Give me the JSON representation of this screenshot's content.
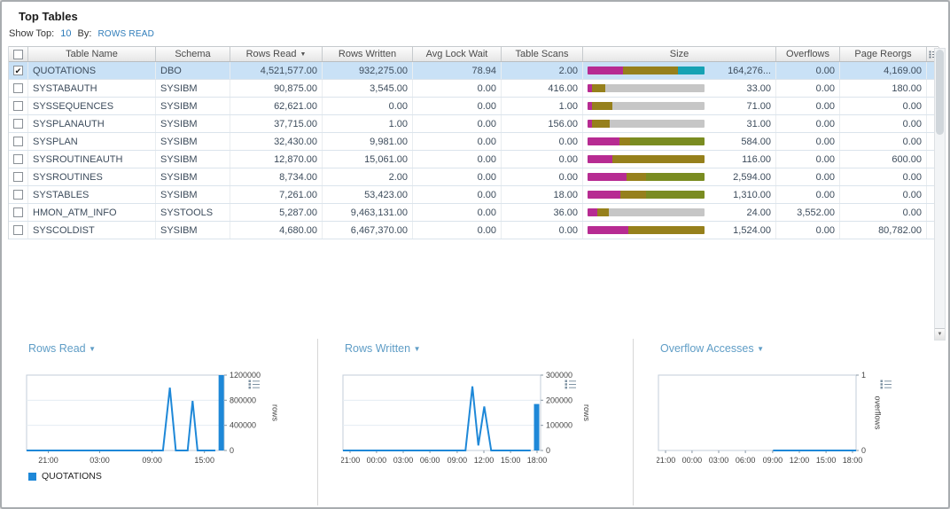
{
  "header": {
    "title": "Top Tables",
    "show_top_label": "Show Top:",
    "show_top_value": "10",
    "by_label": "By:",
    "by_value": "ROWS READ"
  },
  "icons": {
    "sort_desc": "▼",
    "dropdown": "▼",
    "check": "✔",
    "scroll_down": "▼"
  },
  "table": {
    "columns": [
      "Table Name",
      "Schema",
      "Rows Read",
      "Rows Written",
      "Avg Lock Wait",
      "Table Scans",
      "Size",
      "Overflows",
      "Page Reorgs"
    ],
    "sort_column": "Rows Read",
    "bar_colors": {
      "magenta": "#b72b92",
      "olive": "#96801c",
      "green": "#7a8c21",
      "teal": "#16a2b4",
      "gray": "#c6c6c6"
    },
    "rows": [
      {
        "checked": true,
        "selected": true,
        "name": "QUOTATIONS",
        "schema": "DBO",
        "rows_read": "4,521,577.00",
        "rows_written": "932,275.00",
        "avg_lock_wait": "78.94",
        "table_scans": "2.00",
        "size_value": "164,276...",
        "size_bar": [
          [
            "magenta",
            30
          ],
          [
            "olive",
            47
          ],
          [
            "teal",
            23
          ]
        ],
        "overflows": "0.00",
        "page_reorgs": "4,169.00"
      },
      {
        "checked": false,
        "selected": false,
        "name": "SYSTABAUTH",
        "schema": "SYSIBM",
        "rows_read": "90,875.00",
        "rows_written": "3,545.00",
        "avg_lock_wait": "0.00",
        "table_scans": "416.00",
        "size_value": "33.00",
        "size_bar": [
          [
            "magenta",
            4
          ],
          [
            "olive",
            11
          ],
          [
            "gray",
            85
          ]
        ],
        "overflows": "0.00",
        "page_reorgs": "180.00"
      },
      {
        "checked": false,
        "selected": false,
        "name": "SYSSEQUENCES",
        "schema": "SYSIBM",
        "rows_read": "62,621.00",
        "rows_written": "0.00",
        "avg_lock_wait": "0.00",
        "table_scans": "1.00",
        "size_value": "71.00",
        "size_bar": [
          [
            "magenta",
            4
          ],
          [
            "olive",
            17
          ],
          [
            "gray",
            79
          ]
        ],
        "overflows": "0.00",
        "page_reorgs": "0.00"
      },
      {
        "checked": false,
        "selected": false,
        "name": "SYSPLANAUTH",
        "schema": "SYSIBM",
        "rows_read": "37,715.00",
        "rows_written": "1.00",
        "avg_lock_wait": "0.00",
        "table_scans": "156.00",
        "size_value": "31.00",
        "size_bar": [
          [
            "magenta",
            4
          ],
          [
            "olive",
            15
          ],
          [
            "gray",
            81
          ]
        ],
        "overflows": "0.00",
        "page_reorgs": "0.00"
      },
      {
        "checked": false,
        "selected": false,
        "name": "SYSPLAN",
        "schema": "SYSIBM",
        "rows_read": "32,430.00",
        "rows_written": "9,981.00",
        "avg_lock_wait": "0.00",
        "table_scans": "0.00",
        "size_value": "584.00",
        "size_bar": [
          [
            "magenta",
            27
          ],
          [
            "olive",
            9
          ],
          [
            "green",
            64
          ]
        ],
        "overflows": "0.00",
        "page_reorgs": "0.00"
      },
      {
        "checked": false,
        "selected": false,
        "name": "SYSROUTINEAUTH",
        "schema": "SYSIBM",
        "rows_read": "12,870.00",
        "rows_written": "15,061.00",
        "avg_lock_wait": "0.00",
        "table_scans": "0.00",
        "size_value": "116.00",
        "size_bar": [
          [
            "magenta",
            21
          ],
          [
            "olive",
            79
          ]
        ],
        "overflows": "0.00",
        "page_reorgs": "600.00"
      },
      {
        "checked": false,
        "selected": false,
        "name": "SYSROUTINES",
        "schema": "SYSIBM",
        "rows_read": "8,734.00",
        "rows_written": "2.00",
        "avg_lock_wait": "0.00",
        "table_scans": "0.00",
        "size_value": "2,594.00",
        "size_bar": [
          [
            "magenta",
            33
          ],
          [
            "olive",
            17
          ],
          [
            "green",
            50
          ]
        ],
        "overflows": "0.00",
        "page_reorgs": "0.00"
      },
      {
        "checked": false,
        "selected": false,
        "name": "SYSTABLES",
        "schema": "SYSIBM",
        "rows_read": "7,261.00",
        "rows_written": "53,423.00",
        "avg_lock_wait": "0.00",
        "table_scans": "18.00",
        "size_value": "1,310.00",
        "size_bar": [
          [
            "magenta",
            28
          ],
          [
            "olive",
            22
          ],
          [
            "green",
            50
          ]
        ],
        "overflows": "0.00",
        "page_reorgs": "0.00"
      },
      {
        "checked": false,
        "selected": false,
        "name": "HMON_ATM_INFO",
        "schema": "SYSTOOLS",
        "rows_read": "5,287.00",
        "rows_written": "9,463,131.00",
        "avg_lock_wait": "0.00",
        "table_scans": "36.00",
        "size_value": "24.00",
        "size_bar": [
          [
            "magenta",
            8
          ],
          [
            "olive",
            10
          ],
          [
            "gray",
            82
          ]
        ],
        "overflows": "3,552.00",
        "page_reorgs": "0.00"
      },
      {
        "checked": false,
        "selected": false,
        "name": "SYSCOLDIST",
        "schema": "SYSIBM",
        "rows_read": "4,680.00",
        "rows_written": "6,467,370.00",
        "avg_lock_wait": "0.00",
        "table_scans": "0.00",
        "size_value": "1,524.00",
        "size_bar": [
          [
            "magenta",
            35
          ],
          [
            "olive",
            65
          ]
        ],
        "overflows": "0.00",
        "page_reorgs": "80,782.00"
      }
    ]
  },
  "legend": {
    "label": "QUOTATIONS",
    "color": "#1e88d8"
  },
  "chart_data": [
    {
      "type": "line",
      "title": "Rows Read",
      "ylabel": "rows",
      "ylim": [
        0,
        1200000
      ],
      "yticks": [
        0,
        400000,
        800000,
        1200000
      ],
      "xticks": [
        {
          "label": "21:00",
          "pos": 0.11
        },
        {
          "label": "03:00",
          "pos": 0.37
        },
        {
          "label": "09:00",
          "pos": 0.635
        },
        {
          "label": "15:00",
          "pos": 0.9
        }
      ],
      "grid": true,
      "legend_position": "bottom-left",
      "series": [
        {
          "name": "QUOTATIONS",
          "color": "#1e88d8",
          "points": [
            [
              0,
              0
            ],
            [
              0.69,
              0
            ],
            [
              0.725,
              1000000
            ],
            [
              0.755,
              0
            ],
            [
              0.815,
              0
            ],
            [
              0.84,
              790000
            ],
            [
              0.865,
              0
            ],
            [
              0.955,
              0
            ]
          ],
          "end_bar": {
            "pos": 0.985,
            "value": 1200000
          }
        }
      ]
    },
    {
      "type": "line",
      "title": "Rows Written",
      "ylabel": "rows",
      "ylim": [
        0,
        300000
      ],
      "yticks": [
        0,
        100000,
        200000,
        300000
      ],
      "xticks": [
        {
          "label": "21:00",
          "pos": 0.036
        },
        {
          "label": "00:00",
          "pos": 0.17
        },
        {
          "label": "03:00",
          "pos": 0.305
        },
        {
          "label": "06:00",
          "pos": 0.44
        },
        {
          "label": "09:00",
          "pos": 0.578
        },
        {
          "label": "12:00",
          "pos": 0.713
        },
        {
          "label": "15:00",
          "pos": 0.848
        },
        {
          "label": "18:00",
          "pos": 0.982
        }
      ],
      "grid": true,
      "series": [
        {
          "name": "QUOTATIONS",
          "color": "#1e88d8",
          "points": [
            [
              0,
              0
            ],
            [
              0.62,
              0
            ],
            [
              0.655,
              255000
            ],
            [
              0.685,
              20000
            ],
            [
              0.715,
              175000
            ],
            [
              0.75,
              0
            ],
            [
              0.95,
              0
            ]
          ],
          "end_bar": {
            "pos": 0.98,
            "value": 185000
          }
        }
      ]
    },
    {
      "type": "line",
      "title": "Overflow Accesses",
      "ylabel": "overflows",
      "ylim": [
        0,
        1
      ],
      "yticks": [
        0,
        1
      ],
      "xticks": [
        {
          "label": "21:00",
          "pos": 0.036
        },
        {
          "label": "00:00",
          "pos": 0.17
        },
        {
          "label": "03:00",
          "pos": 0.305
        },
        {
          "label": "06:00",
          "pos": 0.44
        },
        {
          "label": "09:00",
          "pos": 0.578
        },
        {
          "label": "12:00",
          "pos": 0.713
        },
        {
          "label": "15:00",
          "pos": 0.848
        },
        {
          "label": "18:00",
          "pos": 0.982
        }
      ],
      "grid": true,
      "series": [
        {
          "name": "QUOTATIONS",
          "color": "#1e88d8",
          "points": [
            [
              0.58,
              0
            ],
            [
              1,
              0
            ]
          ]
        }
      ]
    }
  ]
}
